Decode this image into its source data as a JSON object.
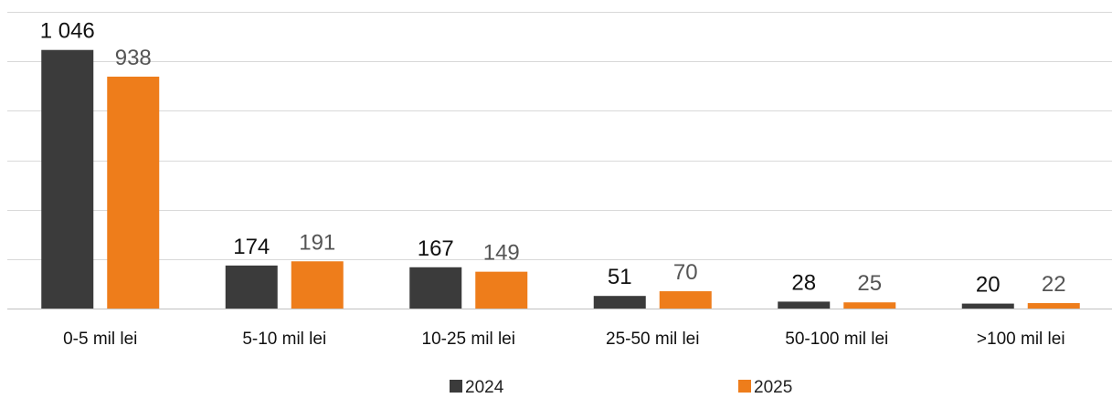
{
  "chart_data": {
    "type": "bar",
    "title": "",
    "xlabel": "",
    "ylabel": "",
    "categories": [
      "0-5 mil lei",
      "5-10 mil lei",
      "10-25 mil lei",
      "25-50 mil lei",
      "50-100 mil lei",
      ">100 mil lei"
    ],
    "series": [
      {
        "name": "2024",
        "values": [
          1046,
          174,
          167,
          51,
          28,
          20
        ],
        "labels": [
          "1 046",
          "174",
          "167",
          "51",
          "28",
          "20"
        ],
        "color": "#3b3b3b",
        "label_color": "#111111"
      },
      {
        "name": "2025",
        "values": [
          938,
          191,
          149,
          70,
          25,
          22
        ],
        "labels": [
          "938",
          "191",
          "149",
          "70",
          "25",
          "22"
        ],
        "color": "#ee7d1b",
        "label_color": "#555555"
      }
    ],
    "ylim": [
      0,
      1200
    ],
    "grid": true,
    "legend_position": "bottom",
    "gridline_color": "#d9d9d9"
  }
}
